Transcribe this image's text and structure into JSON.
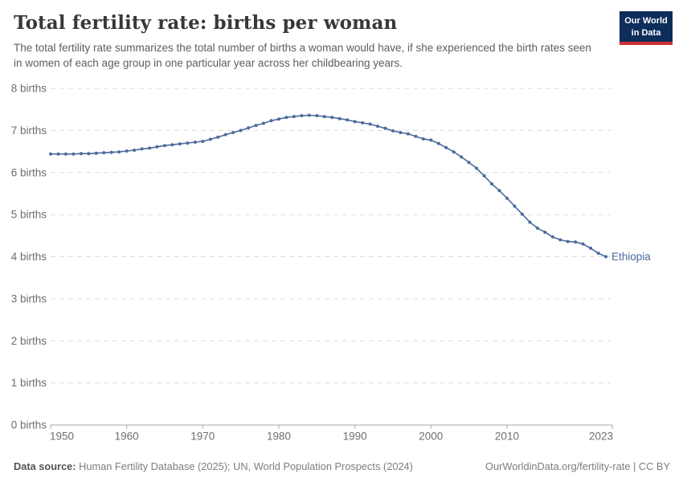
{
  "header": {
    "title": "Total fertility rate: births per woman",
    "subtitle": "The total fertility rate summarizes the total number of births a woman would have, if she experienced the birth rates seen in women of each age group in one particular year across her childbearing years.",
    "logo": {
      "line1": "Our World",
      "line2": "in Data",
      "bg_color": "#0d2d5a",
      "bar_color": "#cd3235"
    }
  },
  "chart_data": {
    "type": "line",
    "title": "Total fertility rate: births per woman",
    "entity": "Ethiopia",
    "xlabel": "",
    "ylabel": "",
    "ylim": [
      0,
      8
    ],
    "grid": "horizontal-dashed",
    "legend_position": "end-of-line-label",
    "yticks": [
      0,
      1,
      2,
      3,
      4,
      5,
      6,
      7,
      8
    ],
    "ytick_labels": [
      "0 births",
      "1 births",
      "2 births",
      "3 births",
      "4 births",
      "5 births",
      "6 births",
      "7 births",
      "8 births"
    ],
    "xticks": [
      1950,
      1960,
      1970,
      1980,
      1990,
      2000,
      2010,
      2023
    ],
    "x": [
      1950,
      1951,
      1952,
      1953,
      1954,
      1955,
      1956,
      1957,
      1958,
      1959,
      1960,
      1961,
      1962,
      1963,
      1964,
      1965,
      1966,
      1967,
      1968,
      1969,
      1970,
      1971,
      1972,
      1973,
      1974,
      1975,
      1976,
      1977,
      1978,
      1979,
      1980,
      1981,
      1982,
      1983,
      1984,
      1985,
      1986,
      1987,
      1988,
      1989,
      1990,
      1991,
      1992,
      1993,
      1994,
      1995,
      1996,
      1997,
      1998,
      1999,
      2000,
      2001,
      2002,
      2003,
      2004,
      2005,
      2006,
      2007,
      2008,
      2009,
      2010,
      2011,
      2012,
      2013,
      2014,
      2015,
      2016,
      2017,
      2018,
      2019,
      2020,
      2021,
      2022,
      2023
    ],
    "series": [
      {
        "name": "Ethiopia",
        "color": "#4c6a9c",
        "values": [
          6.44,
          6.44,
          6.44,
          6.44,
          6.45,
          6.45,
          6.46,
          6.47,
          6.48,
          6.49,
          6.51,
          6.53,
          6.56,
          6.58,
          6.61,
          6.64,
          6.66,
          6.68,
          6.7,
          6.72,
          6.74,
          6.79,
          6.84,
          6.9,
          6.95,
          7.0,
          7.06,
          7.12,
          7.17,
          7.23,
          7.27,
          7.31,
          7.33,
          7.35,
          7.36,
          7.35,
          7.33,
          7.31,
          7.28,
          7.25,
          7.21,
          7.18,
          7.15,
          7.1,
          7.05,
          6.99,
          6.95,
          6.92,
          6.86,
          6.8,
          6.77,
          6.69,
          6.59,
          6.49,
          6.37,
          6.24,
          6.1,
          5.92,
          5.73,
          5.57,
          5.39,
          5.2,
          5.01,
          4.82,
          4.68,
          4.58,
          4.47,
          4.4,
          4.36,
          4.35,
          4.3,
          4.2,
          4.08,
          4.0
        ]
      }
    ]
  },
  "footer": {
    "datasource_label": "Data source:",
    "datasource_text": " Human Fertility Database (2025); UN, World Population Prospects (2024)",
    "rights": "OurWorldinData.org/fertility-rate | CC BY"
  }
}
